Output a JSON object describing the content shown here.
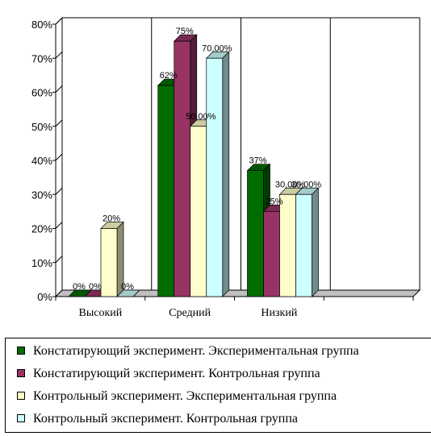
{
  "chart_data": {
    "type": "bar",
    "categories": [
      "Высокий",
      "Средний",
      "Низкий",
      ""
    ],
    "ylim": [
      0,
      80
    ],
    "ytick_labels": [
      "0%",
      "10%",
      "20%",
      "30%",
      "40%",
      "50%",
      "60%",
      "70%",
      "80%"
    ],
    "ytick_values": [
      0,
      10,
      20,
      30,
      40,
      50,
      60,
      70,
      80
    ],
    "grid": "vertical only",
    "legend_placement": "bottom",
    "series": [
      {
        "name": "Констатирующий эксперимент. Экспериментальная группа",
        "color": "#006d00",
        "values": [
          0,
          62,
          37,
          null
        ],
        "labels": [
          "0%",
          "62%",
          "37%",
          ""
        ]
      },
      {
        "name": "Констатирующий эксперимент. Контрольная группа",
        "color": "#993366",
        "values": [
          0,
          75,
          25,
          null
        ],
        "labels": [
          "0%",
          "75%",
          "25%",
          ""
        ]
      },
      {
        "name": "Контрольный эксперимент. Экспериментальная группа",
        "color": "#ffffcc",
        "values": [
          20,
          50,
          30,
          null
        ],
        "labels": [
          "20%",
          "50,00%",
          "30,00%",
          ""
        ]
      },
      {
        "name": "Контрольный эксперимент. Контрольная группа",
        "color": "#ccffff",
        "values": [
          0,
          70,
          30,
          null
        ],
        "labels": [
          "0%",
          "70,00%",
          "30,00%",
          ""
        ]
      }
    ]
  }
}
